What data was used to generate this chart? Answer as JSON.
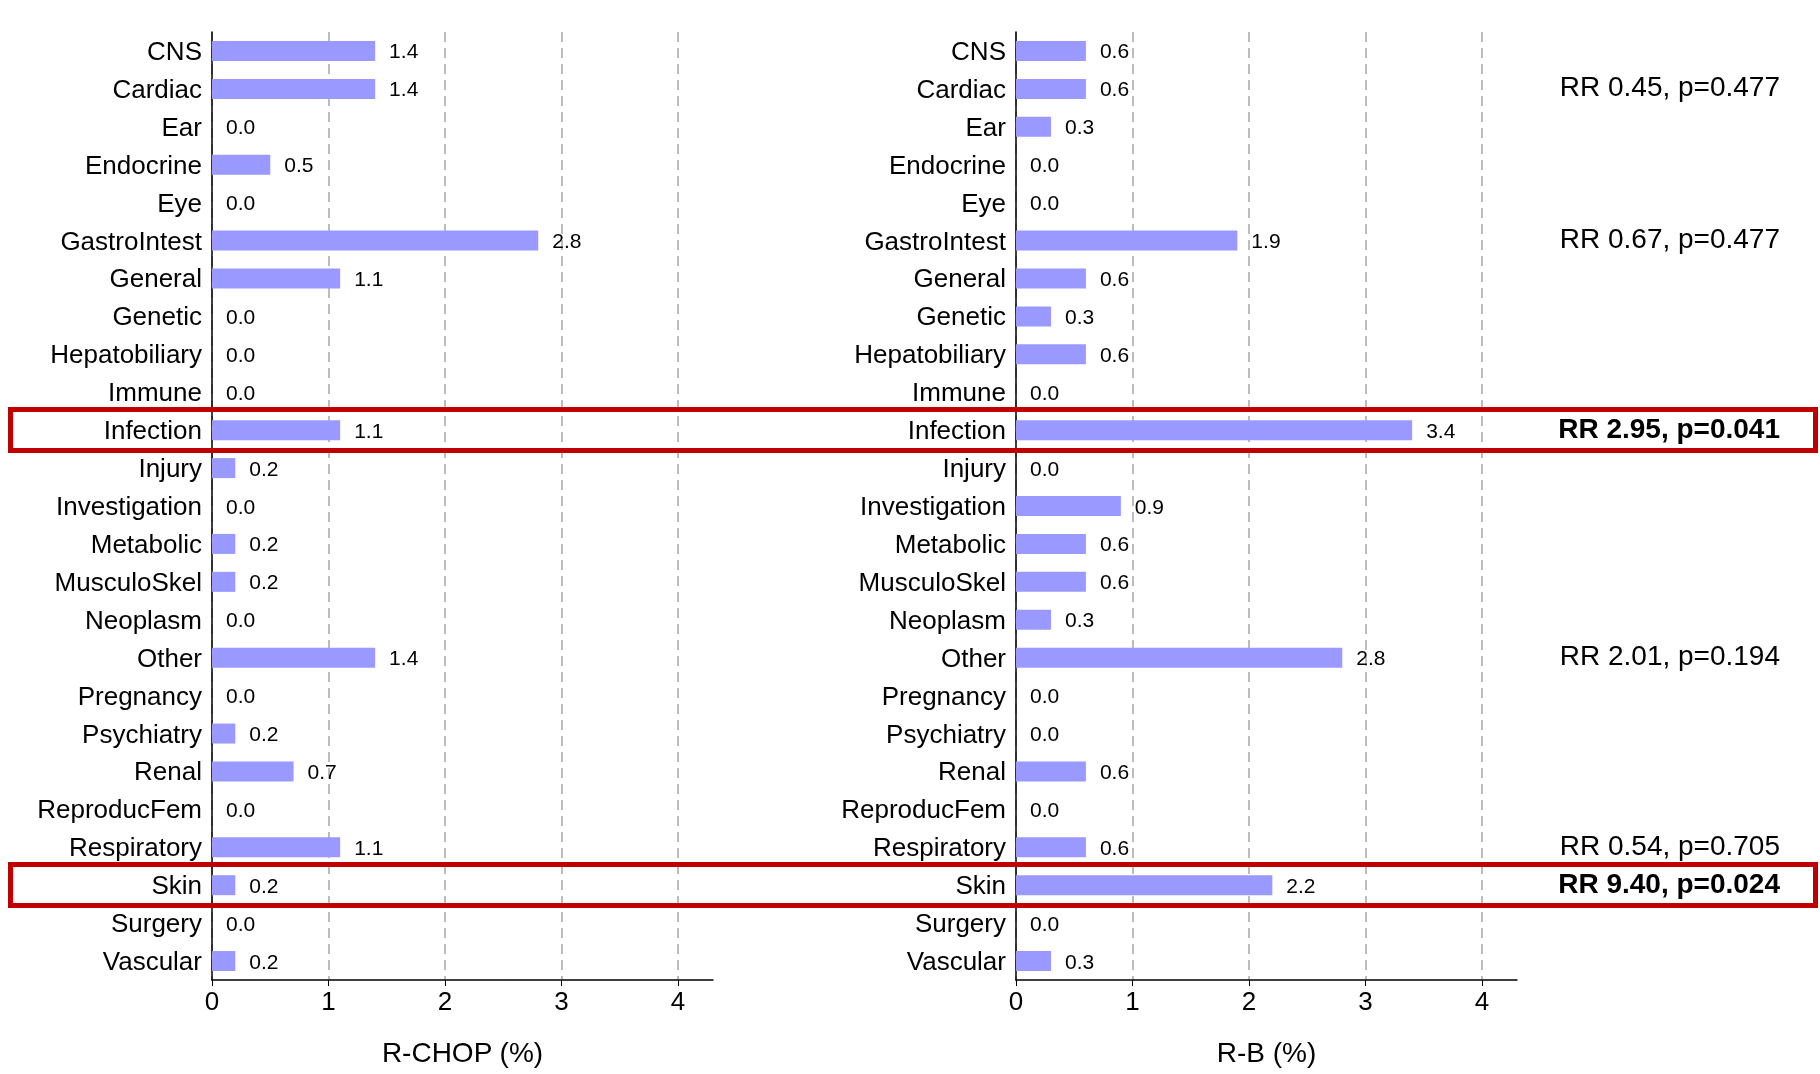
{
  "chart_data": [
    {
      "type": "bar",
      "orientation": "horizontal",
      "xlabel": "R-CHOP (%)",
      "color": "#9999ff",
      "xlim": [
        0,
        4.3
      ],
      "xticks": [
        0,
        1,
        2,
        3,
        4
      ],
      "grid": "x",
      "categories": [
        "CNS",
        "Cardiac",
        "Ear",
        "Endocrine",
        "Eye",
        "GastroIntest",
        "General",
        "Genetic",
        "Hepatobiliary",
        "Immune",
        "Infection",
        "Injury",
        "Investigation",
        "Metabolic",
        "MusculoSkel",
        "Neoplasm",
        "Other",
        "Pregnancy",
        "Psychiatry",
        "Renal",
        "ReproducFem",
        "Respiratory",
        "Skin",
        "Surgery",
        "Vascular"
      ],
      "values": [
        1.4,
        1.4,
        0,
        0.5,
        0,
        2.8,
        1.1,
        0,
        0,
        0,
        1.1,
        0.2,
        0,
        0.2,
        0.2,
        0,
        1.4,
        0,
        0.2,
        0.7,
        0,
        1.1,
        0.2,
        0,
        0.2
      ],
      "value_labels": [
        "1.4",
        "1.4",
        "0.0",
        "0.5",
        "0.0",
        "2.8",
        "1.1",
        "0.0",
        "0.0",
        "0.0",
        "1.1",
        "0.2",
        "0.0",
        "0.2",
        "0.2",
        "0.0",
        "1.4",
        "0.0",
        "0.2",
        "0.7",
        "0.0",
        "1.1",
        "0.2",
        "0.0",
        "0.2"
      ]
    },
    {
      "type": "bar",
      "orientation": "horizontal",
      "xlabel": "R-B (%)",
      "color": "#9999ff",
      "xlim": [
        0,
        4.3
      ],
      "xticks": [
        0,
        1,
        2,
        3,
        4
      ],
      "grid": "x",
      "categories": [
        "CNS",
        "Cardiac",
        "Ear",
        "Endocrine",
        "Eye",
        "GastroIntest",
        "General",
        "Genetic",
        "Hepatobiliary",
        "Immune",
        "Infection",
        "Injury",
        "Investigation",
        "Metabolic",
        "MusculoSkel",
        "Neoplasm",
        "Other",
        "Pregnancy",
        "Psychiatry",
        "Renal",
        "ReproducFem",
        "Respiratory",
        "Skin",
        "Surgery",
        "Vascular"
      ],
      "values": [
        0.6,
        0.6,
        0.3,
        0,
        0,
        1.9,
        0.6,
        0.3,
        0.6,
        0,
        3.4,
        0,
        0.9,
        0.6,
        0.6,
        0.3,
        2.8,
        0,
        0,
        0.6,
        0,
        0.6,
        2.2,
        0,
        0.3
      ],
      "value_labels": [
        "0.6",
        "0.6",
        "0.3",
        "0.0",
        "0.0",
        "1.9",
        "0.6",
        "0.3",
        "0.6",
        "0.0",
        "3.4",
        "0.0",
        "0.9",
        "0.6",
        "0.6",
        "0.3",
        "2.8",
        "0.0",
        "0.0",
        "0.6",
        "0.0",
        "0.6",
        "2.2",
        "0.0",
        "0.3"
      ],
      "annotations": [
        "RR 0.45, p=0.477",
        "RR 0.67, p=0.477",
        "RR 2.95, p=0.041",
        "RR 2.01, p=0.194",
        "RR 0.54, p=0.705",
        "RR 9.40, p=0.024"
      ]
    }
  ]
}
